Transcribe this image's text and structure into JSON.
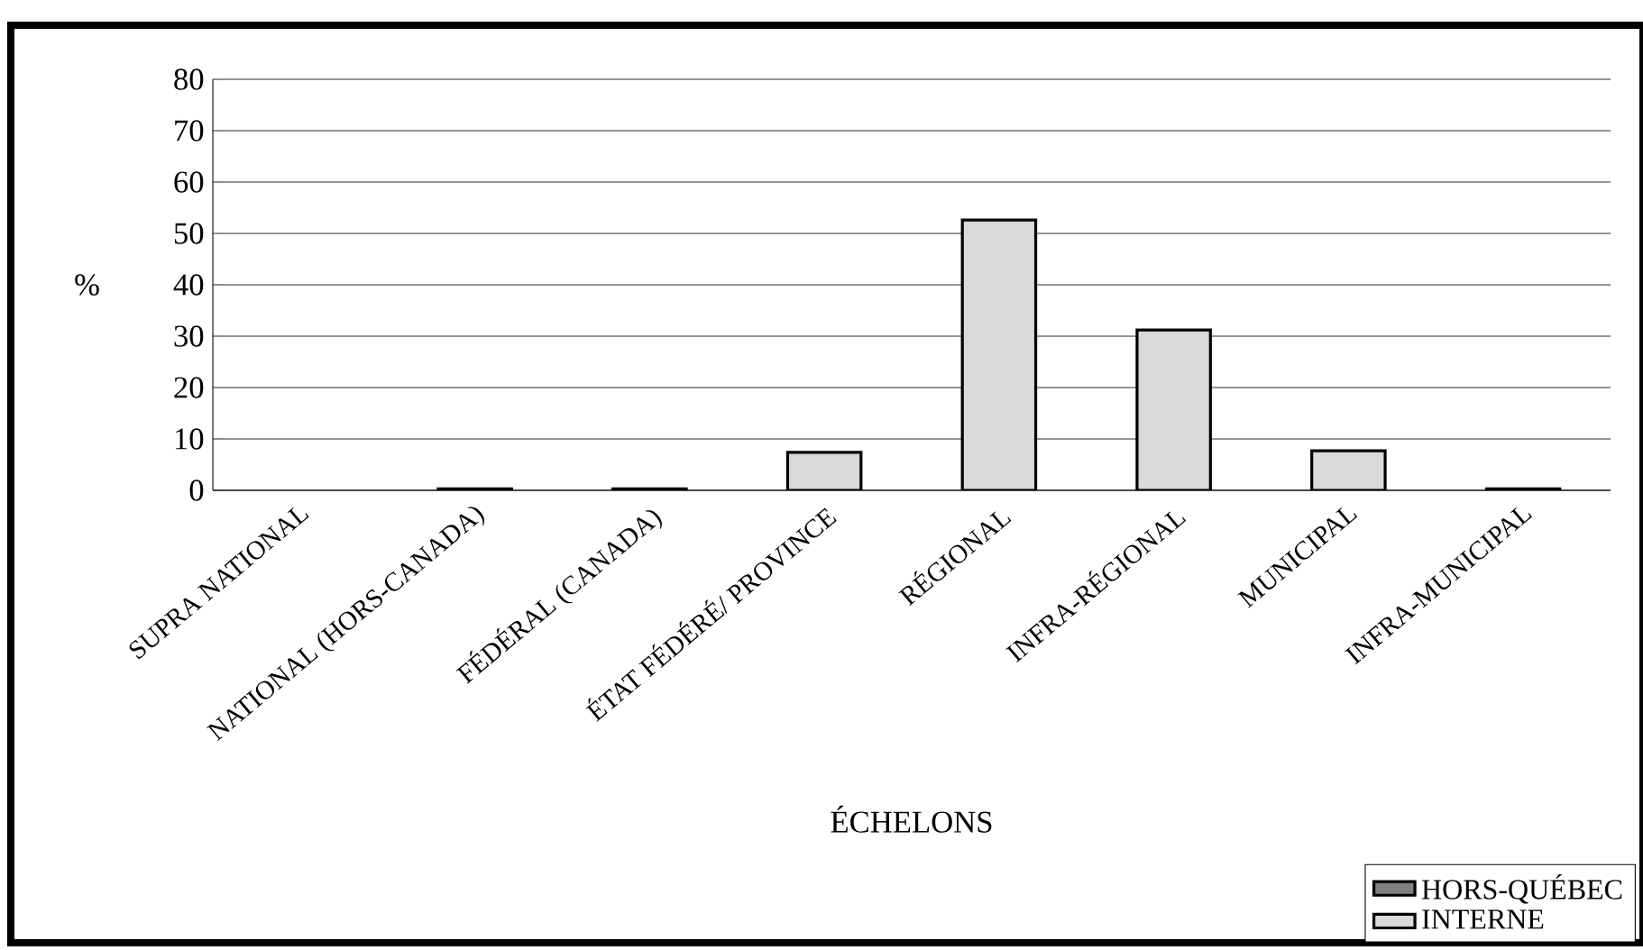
{
  "chart_data": {
    "type": "bar",
    "stacked": true,
    "xlabel": "ÉCHELONS",
    "ylabel": "%",
    "categories": [
      "SUPRA NATIONAL",
      "NATIONAL (HORS-CANADA)",
      "FÉDÉRAL (CANADA)",
      "ÉTAT FÉDÉRÉ/ PROVINCE",
      "RÉGIONAL",
      "INFRA-RÉGIONAL",
      "MUNICIPAL",
      "INFRA-MUNICIPAL"
    ],
    "series": [
      {
        "name": "HORS-QUÉBEC",
        "color": "#808080",
        "values": [
          0,
          0,
          0,
          0,
          0,
          0,
          0,
          0
        ]
      },
      {
        "name": "INTERNE",
        "color": "#d9d9d9",
        "values": [
          0,
          0.3,
          0.3,
          7.4,
          52.6,
          31.2,
          7.7,
          0.3
        ]
      }
    ],
    "ylim": [
      0,
      80
    ],
    "yticks": [
      0,
      10,
      20,
      30,
      40,
      50,
      60,
      70,
      80
    ],
    "grid": "y",
    "legend": "bottom right"
  }
}
